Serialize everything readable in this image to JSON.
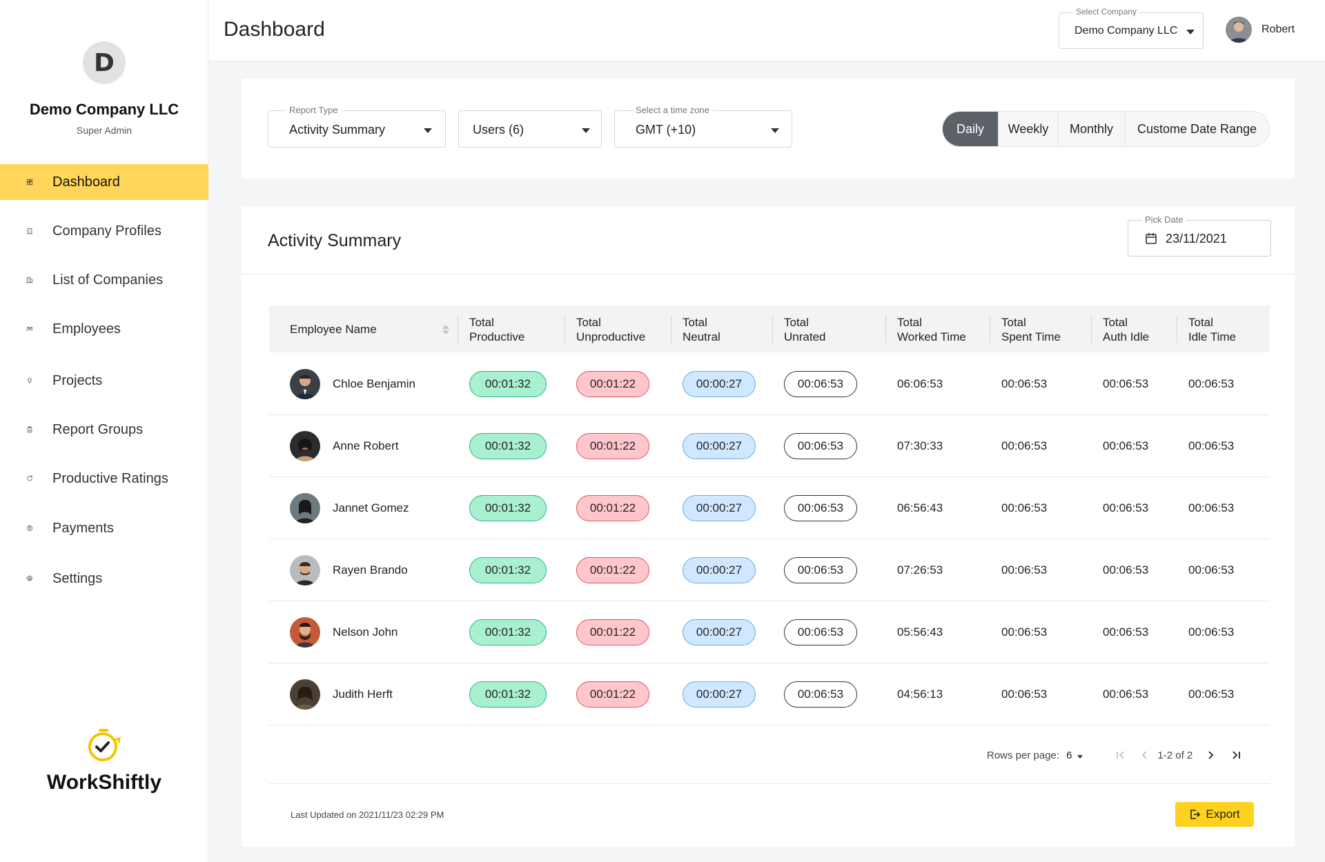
{
  "sidebar": {
    "logo_letter": "D",
    "company_name": "Demo Company LLC",
    "role": "Super Admin",
    "items": [
      {
        "label": "Dashboard",
        "icon": "dashboard-icon",
        "active": true
      },
      {
        "label": "Company Profiles",
        "icon": "building-icon"
      },
      {
        "label": "List of Companies",
        "icon": "buildings-icon"
      },
      {
        "label": "Employees",
        "icon": "users-icon"
      },
      {
        "label": "Projects",
        "icon": "lightbulb-icon"
      },
      {
        "label": "Report Groups",
        "icon": "clipboard-icon"
      },
      {
        "label": "Productive Ratings",
        "icon": "rating-icon"
      },
      {
        "label": "Payments",
        "icon": "dollar-icon"
      },
      {
        "label": "Settings",
        "icon": "gear-icon"
      }
    ],
    "brand_name": "WorkShiftly"
  },
  "header": {
    "title": "Dashboard",
    "company_select_label": "Select Company",
    "company_select_value": "Demo Company LLC",
    "user_name": "Robert"
  },
  "filters": {
    "report_type_label": "Report Type",
    "report_type_value": "Activity Summary",
    "users_value": "Users (6)",
    "timezone_label": "Select a time zone",
    "timezone_value": "GMT (+10)",
    "ranges": [
      "Daily",
      "Weekly",
      "Monthly",
      "Custome Date Range"
    ],
    "active_range": "Daily"
  },
  "activity": {
    "title": "Activity Summary",
    "pick_date_label": "Pick Date",
    "pick_date_value": "23/11/2021",
    "columns": {
      "name": "Employee Name",
      "productive": [
        "Total",
        "Productive"
      ],
      "unproductive": [
        "Total",
        "Unproductive"
      ],
      "neutral": [
        "Total",
        "Neutral"
      ],
      "unrated": [
        "Total",
        "Unrated"
      ],
      "worked": [
        "Total",
        "Worked Time"
      ],
      "spent": [
        "Total",
        "Spent Time"
      ],
      "auth_idle": [
        "Total",
        "Auth Idle"
      ],
      "idle": [
        "Total",
        "Idle Time"
      ]
    },
    "rows": [
      {
        "name": "Chloe Benjamin",
        "productive": "00:01:32",
        "unproductive": "00:01:22",
        "neutral": "00:00:27",
        "unrated": "00:06:53",
        "worked": "06:06:53",
        "spent": "00:06:53",
        "auth_idle": "00:06:53",
        "idle": "00:06:53"
      },
      {
        "name": "Anne Robert",
        "productive": "00:01:32",
        "unproductive": "00:01:22",
        "neutral": "00:00:27",
        "unrated": "00:06:53",
        "worked": "07:30:33",
        "spent": "00:06:53",
        "auth_idle": "00:06:53",
        "idle": "00:06:53"
      },
      {
        "name": "Jannet Gomez",
        "productive": "00:01:32",
        "unproductive": "00:01:22",
        "neutral": "00:00:27",
        "unrated": "00:06:53",
        "worked": "06:56:43",
        "spent": "00:06:53",
        "auth_idle": "00:06:53",
        "idle": "00:06:53"
      },
      {
        "name": "Rayen Brando",
        "productive": "00:01:32",
        "unproductive": "00:01:22",
        "neutral": "00:00:27",
        "unrated": "00:06:53",
        "worked": "07:26:53",
        "spent": "00:06:53",
        "auth_idle": "00:06:53",
        "idle": "00:06:53"
      },
      {
        "name": "Nelson John",
        "productive": "00:01:32",
        "unproductive": "00:01:22",
        "neutral": "00:00:27",
        "unrated": "00:06:53",
        "worked": "05:56:43",
        "spent": "00:06:53",
        "auth_idle": "00:06:53",
        "idle": "00:06:53"
      },
      {
        "name": "Judith Herft",
        "productive": "00:01:32",
        "unproductive": "00:01:22",
        "neutral": "00:00:27",
        "unrated": "00:06:53",
        "worked": "04:56:13",
        "spent": "00:06:53",
        "auth_idle": "00:06:53",
        "idle": "00:06:53"
      }
    ],
    "rows_per_page_label": "Rows per page:",
    "rows_per_page_value": "6",
    "page_range": "1-2 of 2",
    "last_updated": "Last Updated on 2021/11/23 02:29 PM",
    "export_label": "Export"
  },
  "colors": {
    "accent": "#ffd55a",
    "productive": "#a8f0cf",
    "unproductive": "#ffc6cc",
    "neutral": "#cfe8ff"
  }
}
